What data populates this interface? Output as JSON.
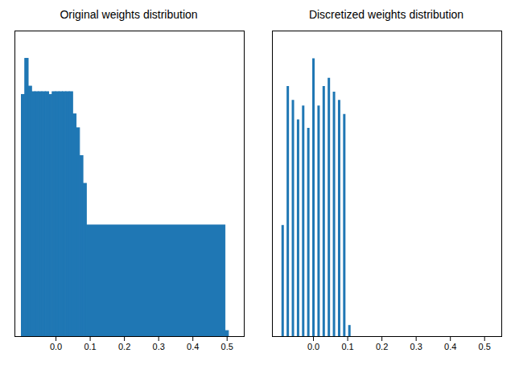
{
  "chart_data": [
    {
      "type": "histogram",
      "title": "Original weights distribution",
      "bins": [
        -0.1,
        -0.09,
        -0.08,
        -0.07,
        -0.06,
        -0.05,
        -0.04,
        -0.03,
        -0.02,
        -0.01,
        0.0,
        0.01,
        0.02,
        0.03,
        0.04,
        0.05,
        0.06,
        0.07,
        0.08,
        0.09,
        0.495,
        0.505
      ],
      "values": [
        87,
        100,
        90,
        88,
        88,
        88,
        88,
        88,
        87,
        88,
        88,
        88,
        88,
        88,
        88,
        80,
        75,
        65,
        55,
        40,
        2
      ],
      "color": "#1f77b4",
      "xlim": [
        -0.12,
        0.55
      ],
      "xticks": [
        {
          "value": 0,
          "label": "0.0"
        },
        0.1,
        0.2,
        0.3,
        0.4,
        0.5
      ],
      "ylim": [
        0,
        110
      ],
      "yticks": [],
      "tick_labels": "x"
    },
    {
      "type": "bar",
      "title": "Discretized weights distribution",
      "x": [
        -0.09,
        -0.075,
        -0.06,
        -0.045,
        -0.03,
        -0.015,
        0.0,
        0.015,
        0.03,
        0.045,
        0.06,
        0.075,
        0.09,
        0.105
      ],
      "values": [
        40,
        90,
        85,
        78,
        83,
        75,
        100,
        83,
        90,
        93,
        88,
        85,
        80,
        4
      ],
      "color": "#1f77b4",
      "xlim": [
        -0.12,
        0.55
      ],
      "xticks": [
        {
          "value": 0,
          "label": "0.0"
        },
        0.1,
        0.2,
        0.3,
        0.4,
        0.5
      ],
      "ylim": [
        0,
        110
      ],
      "yticks": [],
      "tick_labels": "x"
    }
  ]
}
